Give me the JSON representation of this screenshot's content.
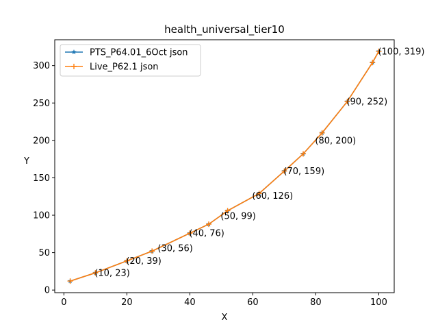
{
  "chart_data": {
    "type": "line",
    "title": "health_universal_tier10",
    "xlabel": "X",
    "ylabel": "Y",
    "xlim": [
      -2.9,
      104.9
    ],
    "ylim": [
      -3.5,
      334.5
    ],
    "xticks": [
      0,
      20,
      40,
      60,
      80,
      100
    ],
    "yticks": [
      0,
      50,
      100,
      150,
      200,
      250,
      300
    ],
    "grid": false,
    "legend_position": "top-left",
    "series": [
      {
        "name": "PTS_P64.01_6Oct json",
        "color": "#1f77b4",
        "marker": "star",
        "x": [
          2,
          10,
          20,
          28,
          40,
          46,
          52,
          62,
          70,
          76,
          82,
          90,
          98,
          100
        ],
        "y": [
          12,
          23,
          39,
          52,
          76,
          88,
          106,
          129,
          159,
          182,
          210,
          252,
          304,
          319
        ]
      },
      {
        "name": "Live_P62.1 json",
        "color": "#ff7f0e",
        "marker": "plus",
        "x": [
          2,
          10,
          20,
          28,
          40,
          46,
          52,
          62,
          70,
          76,
          82,
          90,
          98,
          100
        ],
        "y": [
          12,
          23,
          39,
          52,
          76,
          88,
          106,
          129,
          159,
          182,
          210,
          252,
          304,
          319
        ]
      }
    ],
    "annotations": [
      {
        "x": 10,
        "y": 23,
        "text": "(10, 23)"
      },
      {
        "x": 20,
        "y": 39,
        "text": "(20, 39)"
      },
      {
        "x": 30,
        "y": 56,
        "text": "(30, 56)"
      },
      {
        "x": 40,
        "y": 76,
        "text": "(40, 76)"
      },
      {
        "x": 50,
        "y": 99,
        "text": "(50, 99)"
      },
      {
        "x": 60,
        "y": 126,
        "text": "(60, 126)"
      },
      {
        "x": 70,
        "y": 159,
        "text": "(70, 159)"
      },
      {
        "x": 80,
        "y": 200,
        "text": "(80, 200)"
      },
      {
        "x": 90,
        "y": 252,
        "text": "(90, 252)"
      },
      {
        "x": 100,
        "y": 319,
        "text": "(100, 319)"
      }
    ]
  }
}
